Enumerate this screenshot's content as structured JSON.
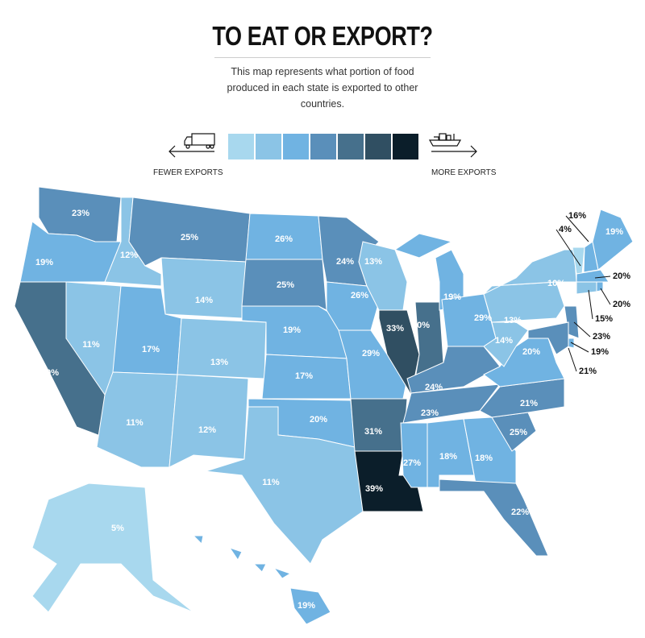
{
  "header": {
    "title": "TO EAT OR EXPORT?",
    "subtitle": "This map represents what portion of food produced in each state is exported to other countries."
  },
  "legend": {
    "low_label": "FEWER EXPORTS",
    "high_label": "MORE EXPORTS",
    "low_icon": "truck-icon",
    "high_icon": "cargo-ship-icon",
    "colors": [
      "#a8d8ee",
      "#8bc4e6",
      "#70b3e2",
      "#5a8fba",
      "#46708c",
      "#304f62",
      "#0b1e2a"
    ]
  },
  "states": [
    {
      "code": "WA",
      "value": "23%",
      "bin": 3
    },
    {
      "code": "OR",
      "value": "19%",
      "bin": 2
    },
    {
      "code": "CA",
      "value": "30%",
      "bin": 4
    },
    {
      "code": "ID",
      "value": "12%",
      "bin": 1
    },
    {
      "code": "NV",
      "value": "11%",
      "bin": 1
    },
    {
      "code": "MT",
      "value": "25%",
      "bin": 3
    },
    {
      "code": "WY",
      "value": "14%",
      "bin": 1
    },
    {
      "code": "UT",
      "value": "17%",
      "bin": 2
    },
    {
      "code": "AZ",
      "value": "11%",
      "bin": 1
    },
    {
      "code": "CO",
      "value": "13%",
      "bin": 1
    },
    {
      "code": "NM",
      "value": "12%",
      "bin": 1
    },
    {
      "code": "ND",
      "value": "26%",
      "bin": 2
    },
    {
      "code": "SD",
      "value": "25%",
      "bin": 3
    },
    {
      "code": "NE",
      "value": "19%",
      "bin": 2
    },
    {
      "code": "KS",
      "value": "17%",
      "bin": 2
    },
    {
      "code": "OK",
      "value": "20%",
      "bin": 2
    },
    {
      "code": "TX",
      "value": "11%",
      "bin": 1
    },
    {
      "code": "MN",
      "value": "24%",
      "bin": 3
    },
    {
      "code": "IA",
      "value": "26%",
      "bin": 2
    },
    {
      "code": "MO",
      "value": "29%",
      "bin": 2
    },
    {
      "code": "AR",
      "value": "31%",
      "bin": 4
    },
    {
      "code": "LA",
      "value": "39%",
      "bin": 6
    },
    {
      "code": "WI",
      "value": "13%",
      "bin": 1
    },
    {
      "code": "IL",
      "value": "33%",
      "bin": 5
    },
    {
      "code": "IN",
      "value": "30%",
      "bin": 4
    },
    {
      "code": "MI",
      "value": "19%",
      "bin": 2
    },
    {
      "code": "OH",
      "value": "29%",
      "bin": 2
    },
    {
      "code": "KY",
      "value": "24%",
      "bin": 3
    },
    {
      "code": "TN",
      "value": "23%",
      "bin": 3
    },
    {
      "code": "MS",
      "value": "27%",
      "bin": 2
    },
    {
      "code": "AL",
      "value": "18%",
      "bin": 2
    },
    {
      "code": "GA",
      "value": "18%",
      "bin": 2
    },
    {
      "code": "FL",
      "value": "22%",
      "bin": 3
    },
    {
      "code": "SC",
      "value": "25%",
      "bin": 3
    },
    {
      "code": "NC",
      "value": "21%",
      "bin": 3
    },
    {
      "code": "VA",
      "value": "20%",
      "bin": 2
    },
    {
      "code": "WV",
      "value": "14%",
      "bin": 1
    },
    {
      "code": "PA",
      "value": "13%",
      "bin": 1
    },
    {
      "code": "NY",
      "value": "10%",
      "bin": 1
    },
    {
      "code": "VT",
      "value": "4%",
      "bin": 0
    },
    {
      "code": "NH",
      "value": "16%",
      "bin": 2
    },
    {
      "code": "ME",
      "value": "19%",
      "bin": 2
    },
    {
      "code": "MA",
      "value": "20%",
      "bin": 2
    },
    {
      "code": "CT",
      "value": "15%",
      "bin": 1
    },
    {
      "code": "RI",
      "value": "20%",
      "bin": 2
    },
    {
      "code": "NJ",
      "value": "23%",
      "bin": 3
    },
    {
      "code": "DE",
      "value": "19%",
      "bin": 2
    },
    {
      "code": "MD",
      "value": "21%",
      "bin": 3
    },
    {
      "code": "AK",
      "value": "5%",
      "bin": 0
    },
    {
      "code": "HI",
      "value": "19%",
      "bin": 2
    }
  ]
}
